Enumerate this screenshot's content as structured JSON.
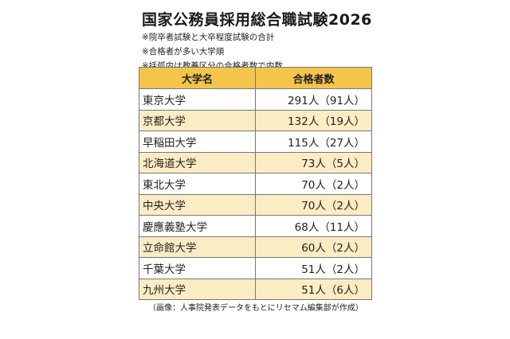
{
  "title": "国家公務員採用総合職試験2026",
  "notes": [
    "※院卒者試験と大卒程度試験の合計",
    "※合格者が多い大学順",
    "※括弧内は教養区分の合格者数で内数"
  ],
  "table": {
    "headers": {
      "university": "大学名",
      "count": "合格者数"
    },
    "rows": [
      {
        "university": "東京大学",
        "count": "291人（91人）"
      },
      {
        "university": "京都大学",
        "count": "132人（19人）"
      },
      {
        "university": "早稲田大学",
        "count": "115人（27人）"
      },
      {
        "university": "北海道大学",
        "count": "73人（5人）"
      },
      {
        "university": "東北大学",
        "count": "70人（2人）"
      },
      {
        "university": "中央大学",
        "count": "70人（2人）"
      },
      {
        "university": "慶應義塾大学",
        "count": "68人（11人）"
      },
      {
        "university": "立命館大学",
        "count": "60人（2人）"
      },
      {
        "university": "千葉大学",
        "count": "51人（2人）"
      },
      {
        "university": "九州大学",
        "count": "51人（6人）"
      }
    ]
  },
  "caption": "（画像：人事院発表データをもとにリセマム編集部が作成）",
  "colors": {
    "header_bg": "#f4c54b",
    "alt_row_bg": "#fbecc3",
    "border": "#777777"
  }
}
